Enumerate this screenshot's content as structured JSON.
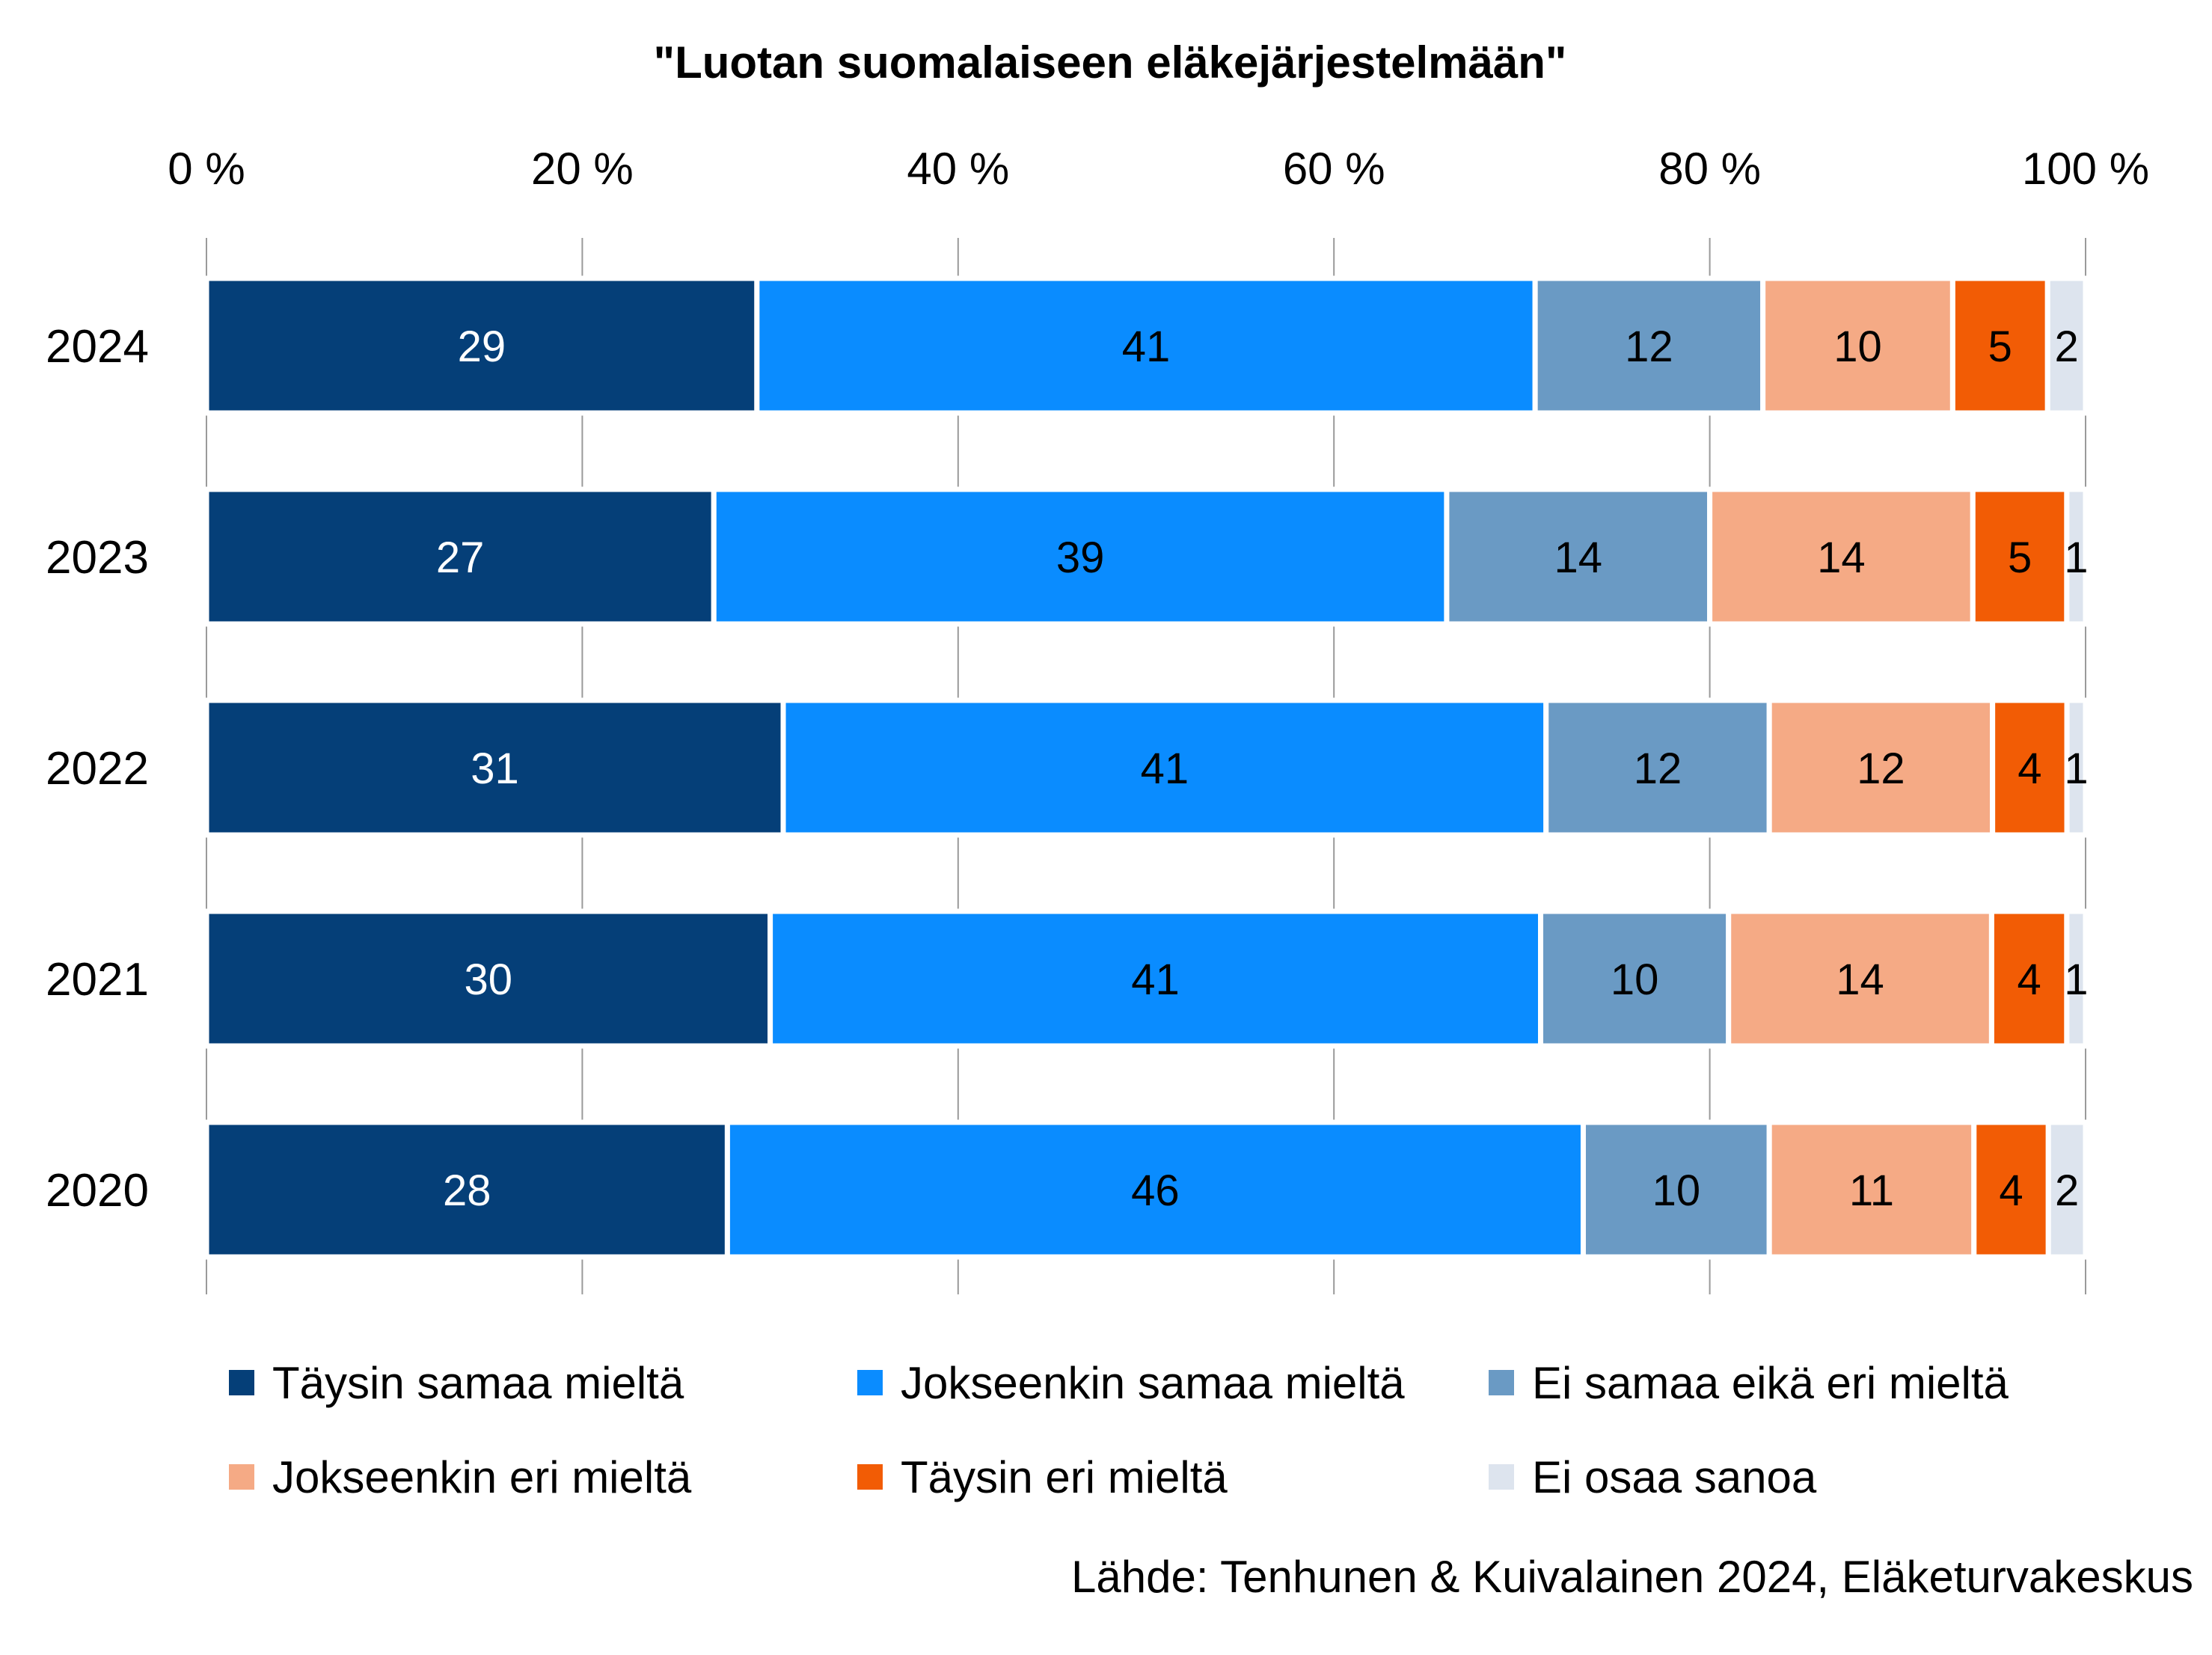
{
  "chart_data": {
    "type": "bar",
    "orientation": "horizontal",
    "stacked": "percent",
    "title": "\"Luotan suomalaiseen eläkejärjestelmään\"",
    "source": "Lähde: Tenhunen & Kuivalainen 2024, Eläketurvakeskus",
    "categories": [
      "2024",
      "2023",
      "2022",
      "2021",
      "2020"
    ],
    "x_ticks": [
      "0 %",
      "20 %",
      "40 %",
      "60 %",
      "80 %",
      "100 %"
    ],
    "xlim": [
      0,
      100
    ],
    "x_axis_position": "top",
    "grid": true,
    "legend_position": "bottom",
    "series": [
      {
        "name": "Täysin samaa mieltä",
        "color": "#053f78",
        "label_color": "#ffffff",
        "values": [
          29,
          27,
          31,
          30,
          28
        ]
      },
      {
        "name": "Jokseenkin samaa mieltä",
        "color": "#0a8cff",
        "label_color": "#000000",
        "values": [
          41,
          39,
          41,
          41,
          46
        ]
      },
      {
        "name": "Ei samaa eikä eri mieltä",
        "color": "#6a9ac4",
        "label_color": "#000000",
        "values": [
          12,
          14,
          12,
          10,
          10
        ]
      },
      {
        "name": "Jokseenkin eri mieltä",
        "color": "#f5aa85",
        "label_color": "#000000",
        "values": [
          10,
          14,
          12,
          14,
          11
        ]
      },
      {
        "name": "Täysin eri mieltä",
        "color": "#f25c05",
        "label_color": "#000000",
        "values": [
          5,
          5,
          4,
          4,
          4
        ]
      },
      {
        "name": "Ei osaa sanoa",
        "color": "#dde4ee",
        "label_color": "#000000",
        "values": [
          2,
          1,
          1,
          1,
          2
        ]
      }
    ]
  }
}
